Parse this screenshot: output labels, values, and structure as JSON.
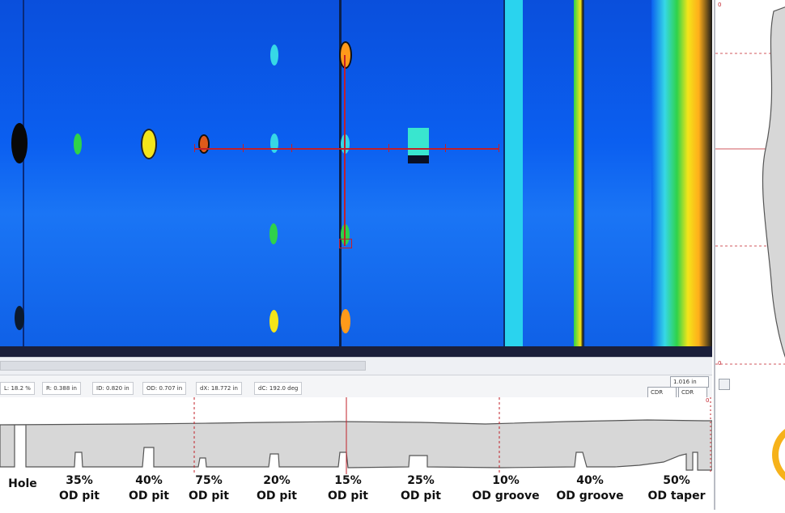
{
  "scan_view": {
    "colors": {
      "background": "#0b5ff0",
      "cursor": "#c2202a",
      "hot": "#ff9a1a",
      "warm": "#f4e51a",
      "green": "#2fd24a",
      "cyan": "#36d8e6"
    }
  },
  "status_bar": {
    "fields": [
      "L: 18.2 %",
      "R: 0.388 in",
      "ID: 0.820 in",
      "OD: 0.707 in",
      "dX: 18.772 in",
      "dC: 192.0 deg"
    ],
    "zoom": "1.016 in",
    "select_left": "CDR",
    "select_right": "CDR"
  },
  "defects": [
    {
      "pct": "",
      "type": "Hole"
    },
    {
      "pct": "35%",
      "type": "OD pit"
    },
    {
      "pct": "40%",
      "type": "OD pit"
    },
    {
      "pct": "75%",
      "type": "OD pit"
    },
    {
      "pct": "20%",
      "type": "OD pit"
    },
    {
      "pct": "15%",
      "type": "OD pit"
    },
    {
      "pct": "25%",
      "type": "OD pit"
    },
    {
      "pct": "10%",
      "type": "OD groove"
    },
    {
      "pct": "40%",
      "type": "OD groove"
    },
    {
      "pct": "50%",
      "type": "OD taper"
    }
  ],
  "axis_marks": {
    "right_top": "0",
    "right_bottom": "0",
    "profile_top": "0"
  }
}
